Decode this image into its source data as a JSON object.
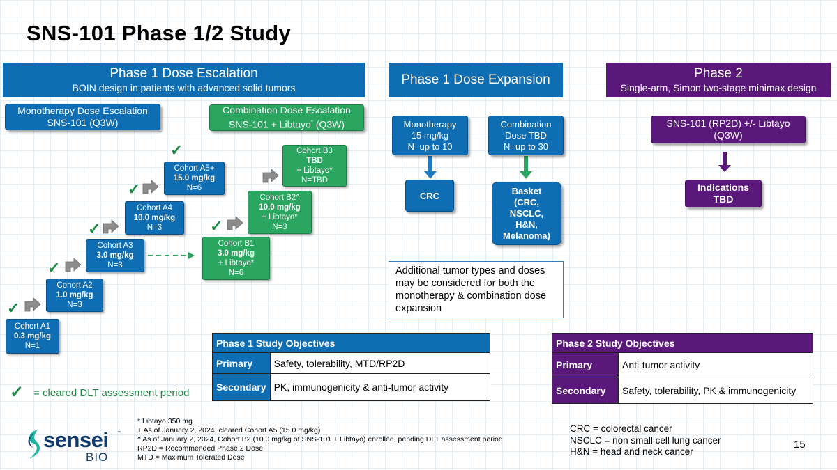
{
  "title": "SNS-101 Phase 1/2 Study",
  "banners": {
    "phase1_escalation": {
      "title": "Phase 1 Dose Escalation",
      "subtitle": "BOIN design in patients with advanced solid tumors"
    },
    "phase1_expansion": {
      "title": "Phase 1 Dose Expansion"
    },
    "phase2": {
      "title": "Phase 2",
      "subtitle": "Single-arm, Simon two-stage minimax design"
    }
  },
  "escalation": {
    "mono_header": {
      "line1": "Monotherapy Dose Escalation",
      "line2": "SNS-101 (Q3W)"
    },
    "combo_header": {
      "line1": "Combination Dose Escalation",
      "line2_pre": "SNS-101 + Libtayo",
      "line2_sup": "*",
      "line2_post": " (Q3W)"
    },
    "mono_cohorts": [
      {
        "name": "Cohort A1",
        "dose": "0.3 mg/kg",
        "n": "N=1"
      },
      {
        "name": "Cohort A2",
        "dose": "1.0 mg/kg",
        "n": "N=3"
      },
      {
        "name": "Cohort A3",
        "dose": "3.0 mg/kg",
        "n": "N=3"
      },
      {
        "name": "Cohort A4",
        "dose": "10.0 mg/kg",
        "n": "N=3"
      },
      {
        "name": "Cohort A5+",
        "dose": "15.0 mg/kg",
        "n": "N=6"
      }
    ],
    "combo_cohorts": [
      {
        "name": "Cohort B1",
        "dose": "3.0 mg/kg",
        "extra": "+ Libtayo*",
        "n": "N=6"
      },
      {
        "name": "Cohort B2^",
        "dose": "10.0 mg/kg",
        "extra": "+ Libtayo*",
        "n": "N=3"
      },
      {
        "name": "Cohort B3",
        "dose": "TBD",
        "extra": "+ Libtayo*",
        "n": "N=TBD"
      }
    ],
    "check_glyph": "✓"
  },
  "expansion": {
    "mono": {
      "line1": "Monotherapy",
      "line2": "15 mg/kg",
      "line3": "N=up to 10"
    },
    "combo": {
      "line1": "Combination",
      "line2": "Dose TBD",
      "line3": "N=up to 30"
    },
    "crc": "CRC",
    "basket": {
      "line1": "Basket",
      "line2": "(CRC,",
      "line3": "NSCLC,",
      "line4": "H&N,",
      "line5": "Melanoma)"
    },
    "note": "Additional tumor types and doses may be considered for both the monotherapy & combination dose expansion"
  },
  "phase2": {
    "regimen": {
      "line1": "SNS-101 (RP2D) +/- Libtayo",
      "line2": "(Q3W)"
    },
    "indications": {
      "line1": "Indications",
      "line2": "TBD"
    }
  },
  "phase1_objectives": {
    "header": "Phase 1 Study Objectives",
    "rows": [
      {
        "label": "Primary",
        "value": "Safety, tolerability, MTD/RP2D"
      },
      {
        "label": "Secondary",
        "value": "PK, immunogenicity & anti-tumor activity"
      }
    ]
  },
  "phase2_objectives": {
    "header": "Phase 2 Study Objectives",
    "rows": [
      {
        "label": "Primary",
        "value": "Anti-tumor activity"
      },
      {
        "label": "Secondary",
        "value": "Safety, tolerability, PK & immunogenicity"
      }
    ]
  },
  "legend": {
    "glyph": "✓",
    "text": "= cleared DLT assessment period"
  },
  "footnotes": [
    "*  Libtayo 350 mg",
    "+ As of January 2, 2024, cleared Cohort A5 (15.0 mg/kg)",
    "^ As of January 2, 2024, Cohort B2 (10.0 mg/kg of SNS-101 + Libtayo) enrolled, pending DLT assessment period",
    "RP2D = Recommended Phase 2 Dose",
    "MTD = Maximum Tolerated Dose"
  ],
  "abbreviations": [
    "CRC = colorectal cancer",
    "NSCLC = non small cell lung cancer",
    "H&N = head and neck cancer"
  ],
  "logo": {
    "name": "sensei",
    "tm": "™",
    "sub": "BIO"
  },
  "page_number": "15",
  "colors": {
    "blue": "#0f6eb3",
    "green": "#2aa661",
    "purple": "#59187a",
    "check": "#1e8a45"
  }
}
